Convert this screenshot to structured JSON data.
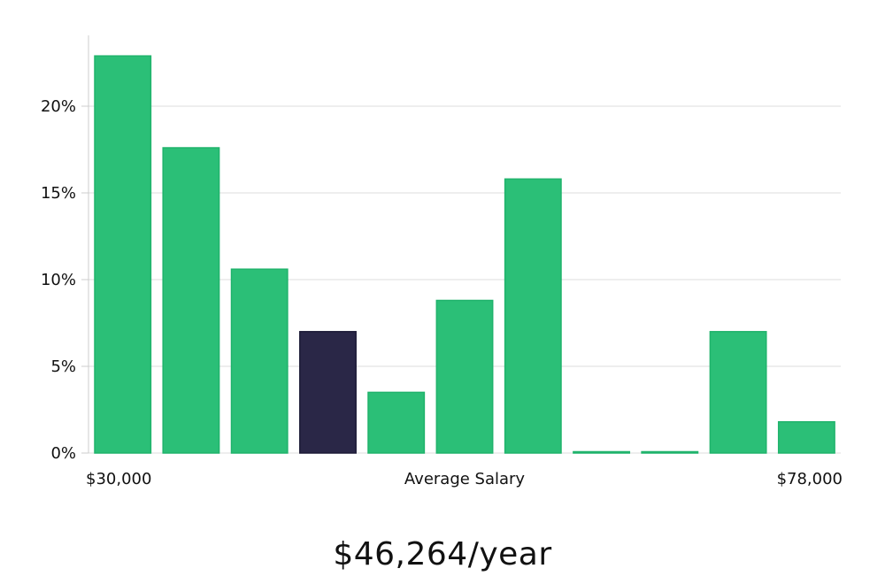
{
  "chart_data": {
    "type": "bar",
    "ylim": [
      0,
      24
    ],
    "y_ticks": [
      {
        "value": 0,
        "label": "0%"
      },
      {
        "value": 5,
        "label": "5%"
      },
      {
        "value": 10,
        "label": "10%"
      },
      {
        "value": 15,
        "label": "15%"
      },
      {
        "value": 20,
        "label": "20%"
      }
    ],
    "grid": true,
    "xlabel": "Average Salary",
    "x_min_label": "$30,000",
    "x_max_label": "$78,000",
    "bars": [
      {
        "value": 22.9,
        "highlight": false
      },
      {
        "value": 17.6,
        "highlight": false
      },
      {
        "value": 10.6,
        "highlight": false
      },
      {
        "value": 7.0,
        "highlight": true
      },
      {
        "value": 3.5,
        "highlight": false
      },
      {
        "value": 8.8,
        "highlight": false
      },
      {
        "value": 15.8,
        "highlight": false
      },
      {
        "value": 0.0,
        "highlight": false
      },
      {
        "value": 0.0,
        "highlight": false
      },
      {
        "value": 7.0,
        "highlight": false
      },
      {
        "value": 1.8,
        "highlight": false
      }
    ],
    "colors": {
      "bar": "#2bbf77",
      "bar_stroke": "#20b36c",
      "highlight": "#2a2747",
      "grid": "#dddddd",
      "axis": "#cccccc"
    }
  },
  "headline": "$46,264/year"
}
